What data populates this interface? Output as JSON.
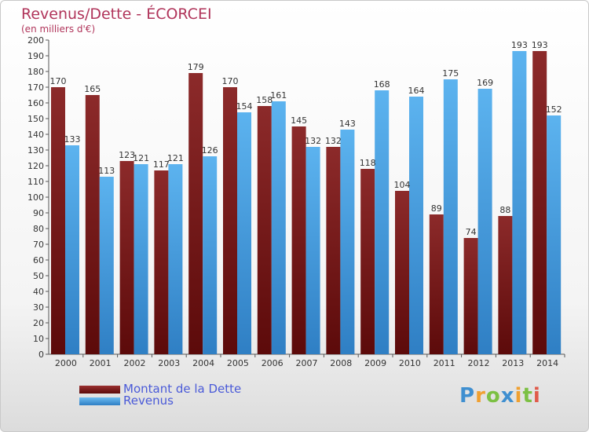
{
  "header": {
    "title": "Revenus/Dette - ÉCORCEI",
    "subtitle": "(en milliers d'€)"
  },
  "logo": {
    "text": "Proxiti",
    "letters": [
      {
        "ch": "P",
        "color": "#3f8fd0"
      },
      {
        "ch": "r",
        "color": "#f0a030"
      },
      {
        "ch": "o",
        "color": "#7cc043"
      },
      {
        "ch": "x",
        "color": "#3f8fd0"
      },
      {
        "ch": "i",
        "color": "#f0a030"
      },
      {
        "ch": "t",
        "color": "#7cc043"
      },
      {
        "ch": "i",
        "color": "#e05a4a"
      }
    ]
  },
  "legend": {
    "items": [
      {
        "label": "Montant de la Dette",
        "color": "#7a1818"
      },
      {
        "label": "Revenus",
        "color": "#4aa3e6"
      }
    ]
  },
  "chart_data": {
    "type": "bar",
    "categories": [
      "2000",
      "2001",
      "2002",
      "2003",
      "2004",
      "2005",
      "2006",
      "2007",
      "2008",
      "2009",
      "2010",
      "2011",
      "2012",
      "2013",
      "2014"
    ],
    "series": [
      {
        "name": "Montant de la Dette",
        "values": [
          170,
          165,
          123,
          117,
          179,
          170,
          158,
          145,
          132,
          118,
          104,
          89,
          74,
          88,
          193
        ],
        "color": "#7a1818"
      },
      {
        "name": "Revenus",
        "values": [
          133,
          113,
          121,
          121,
          126,
          154,
          161,
          132,
          143,
          168,
          164,
          175,
          169,
          193,
          152
        ],
        "color": "#4aa3e6"
      }
    ],
    "ylim": [
      0,
      200
    ],
    "ytick_step": 10,
    "grid": false,
    "legend_position": "bottom-left"
  }
}
